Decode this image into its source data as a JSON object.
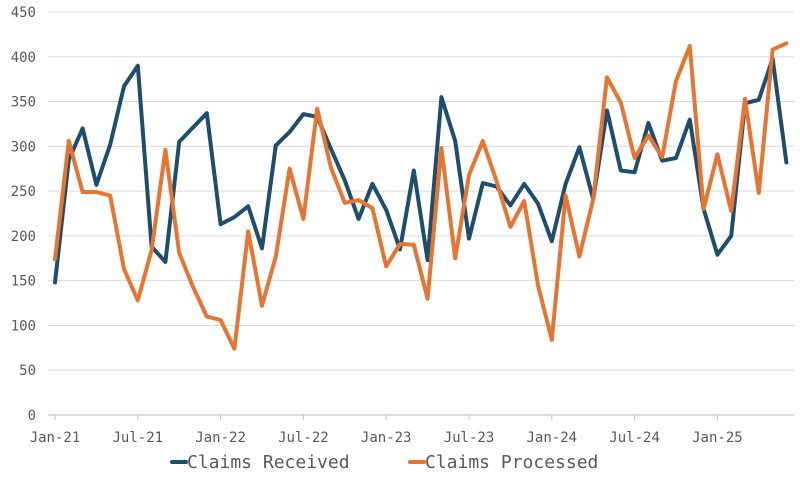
{
  "chart_data": {
    "type": "line",
    "title": "",
    "xlabel": "",
    "ylabel": "",
    "ylim": [
      0,
      450
    ],
    "y_ticks": [
      "0",
      "50",
      "100",
      "150",
      "200",
      "250",
      "300",
      "350",
      "400",
      "450"
    ],
    "x": [
      "Jan-21",
      "Feb-21",
      "Mar-21",
      "Apr-21",
      "May-21",
      "Jun-21",
      "Jul-21",
      "Aug-21",
      "Sep-21",
      "Oct-21",
      "Nov-21",
      "Dec-21",
      "Jan-22",
      "Feb-22",
      "Mar-22",
      "Apr-22",
      "May-22",
      "Jun-22",
      "Jul-22",
      "Aug-22",
      "Sep-22",
      "Oct-22",
      "Nov-22",
      "Dec-22",
      "Jan-23",
      "Feb-23",
      "Mar-23",
      "Apr-23",
      "May-23",
      "Jun-23",
      "Jul-23",
      "Aug-23",
      "Sep-23",
      "Oct-23",
      "Nov-23",
      "Dec-23",
      "Jan-24",
      "Feb-24",
      "Mar-24",
      "Apr-24",
      "May-24",
      "Jun-24",
      "Jul-24",
      "Aug-24",
      "Sep-24",
      "Oct-24",
      "Nov-24",
      "Dec-24",
      "Jan-25",
      "Feb-25",
      "Mar-25",
      "Apr-25",
      "May-25",
      "Jun-25"
    ],
    "x_tick_labels": [
      "Jan-21",
      "Jul-21",
      "Jan-22",
      "Jul-22",
      "Jan-23",
      "Jul-23",
      "Jan-24",
      "Jul-24",
      "Jan-25"
    ],
    "grid": "horizontal",
    "legend_position": "bottom",
    "series": [
      {
        "name": "Claims Received",
        "color": "#1f4e6b",
        "values": [
          148,
          285,
          320,
          257,
          302,
          367,
          390,
          188,
          171,
          305,
          321,
          337,
          213,
          221,
          233,
          186,
          301,
          316,
          336,
          333,
          297,
          262,
          219,
          258,
          229,
          185,
          273,
          173,
          355,
          306,
          197,
          259,
          255,
          234,
          258,
          236,
          194,
          258,
          299,
          241,
          340,
          273,
          271,
          326,
          284,
          287,
          330,
          230,
          179,
          200,
          348,
          352,
          398,
          282
        ]
      },
      {
        "name": "Claims Processed",
        "color": "#e87431",
        "values": [
          174,
          306,
          249,
          249,
          245,
          163,
          128,
          184,
          296,
          181,
          143,
          110,
          106,
          74,
          205,
          122,
          177,
          275,
          219,
          342,
          276,
          237,
          240,
          231,
          166,
          191,
          190,
          130,
          298,
          175,
          268,
          306,
          261,
          210,
          239,
          145,
          84,
          245,
          177,
          241,
          377,
          349,
          287,
          312,
          288,
          373,
          412,
          230,
          291,
          228,
          353,
          248,
          408,
          415
        ]
      }
    ]
  }
}
